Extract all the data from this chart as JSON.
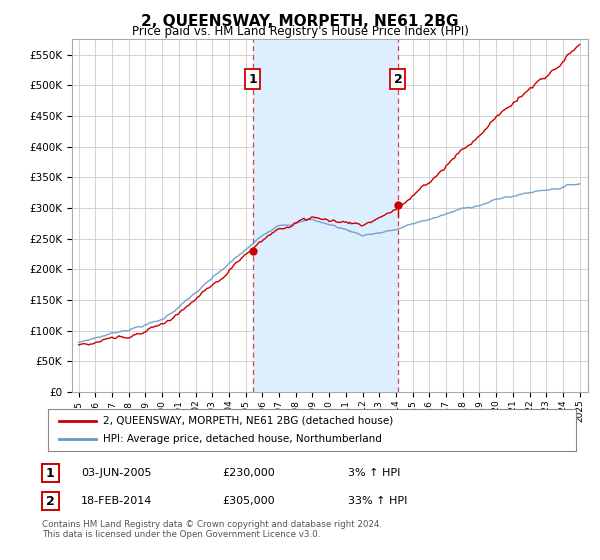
{
  "title": "2, QUEENSWAY, MORPETH, NE61 2BG",
  "subtitle": "Price paid vs. HM Land Registry's House Price Index (HPI)",
  "ylim": [
    0,
    575000
  ],
  "yticks": [
    0,
    50000,
    100000,
    150000,
    200000,
    250000,
    300000,
    350000,
    400000,
    450000,
    500000,
    550000
  ],
  "ytick_labels": [
    "£0",
    "£50K",
    "£100K",
    "£150K",
    "£200K",
    "£250K",
    "£300K",
    "£350K",
    "£400K",
    "£450K",
    "£500K",
    "£550K"
  ],
  "sale1_year": 2005.42,
  "sale1_price": 230000,
  "sale1_label": "1",
  "sale1_date": "03-JUN-2005",
  "sale1_pct": "3%",
  "sale2_year": 2014.12,
  "sale2_price": 305000,
  "sale2_label": "2",
  "sale2_date": "18-FEB-2014",
  "sale2_pct": "33%",
  "red_color": "#cc0000",
  "blue_color": "#6699cc",
  "shade_color": "#ddeeff",
  "marker_box_color": "#cc0000",
  "legend_label1": "2, QUEENSWAY, MORPETH, NE61 2BG (detached house)",
  "legend_label2": "HPI: Average price, detached house, Northumberland",
  "footer1": "Contains HM Land Registry data © Crown copyright and database right 2024.",
  "footer2": "This data is licensed under the Open Government Licence v3.0.",
  "background_color": "#ffffff",
  "grid_color": "#cccccc"
}
